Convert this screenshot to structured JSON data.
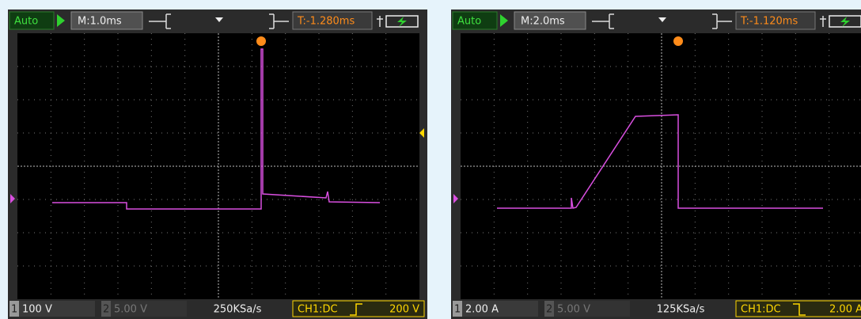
{
  "screens": [
    {
      "mode": "Auto",
      "timebase": "M:1.0ms",
      "trigger_offset": "T:-1.280ms",
      "ch1_number": "1",
      "ch1_scale": "100 V",
      "ch2_number": "2",
      "ch2_scale": "5.00 V",
      "sample_rate": "250KSa/s",
      "trigger_source": "CH1:DC",
      "trigger_level": "200 V"
    },
    {
      "mode": "Auto",
      "timebase": "M:2.0ms",
      "trigger_offset": "T:-1.120ms",
      "ch1_number": "1",
      "ch1_scale": "2.00 A",
      "ch2_number": "2",
      "ch2_scale": "5.00 V",
      "sample_rate": "125KSa/s",
      "trigger_source": "CH1:DC",
      "trigger_level": "2.00 A"
    }
  ]
}
